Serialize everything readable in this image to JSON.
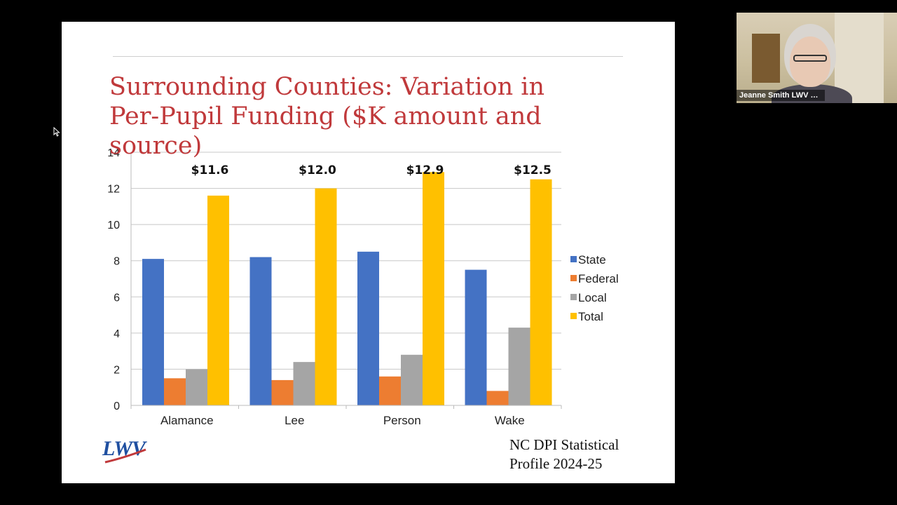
{
  "slide": {
    "title": "Surrounding Counties: Variation in Per-Pupil Funding ($K amount and source)",
    "source": "NC DPI Statistical\nProfile 2024-25",
    "logo_text": "LWV"
  },
  "participant": {
    "name": "Jeanne Smith LWV N..."
  },
  "colors": {
    "state": "#4472c4",
    "federal": "#ed7d31",
    "local": "#a5a5a5",
    "total": "#ffc000",
    "title": "#c0393b",
    "logo": "#1f4fa0"
  },
  "chart_data": {
    "type": "bar",
    "categories": [
      "Alamance",
      "Lee",
      "Person",
      "Wake"
    ],
    "series": [
      {
        "name": "State",
        "values": [
          8.1,
          8.2,
          8.5,
          7.5
        ]
      },
      {
        "name": "Federal",
        "values": [
          1.5,
          1.4,
          1.6,
          0.8
        ]
      },
      {
        "name": "Local",
        "values": [
          2.0,
          2.4,
          2.8,
          4.3
        ]
      },
      {
        "name": "Total",
        "values": [
          11.6,
          12.0,
          12.9,
          12.5
        ]
      }
    ],
    "total_labels": [
      "$11.6",
      "$12.0",
      "$12.9",
      "$12.5"
    ],
    "yticks": [
      0,
      2,
      4,
      6,
      8,
      10,
      12,
      14
    ],
    "ylim": [
      0,
      14
    ],
    "grid": true,
    "legend": "right"
  }
}
